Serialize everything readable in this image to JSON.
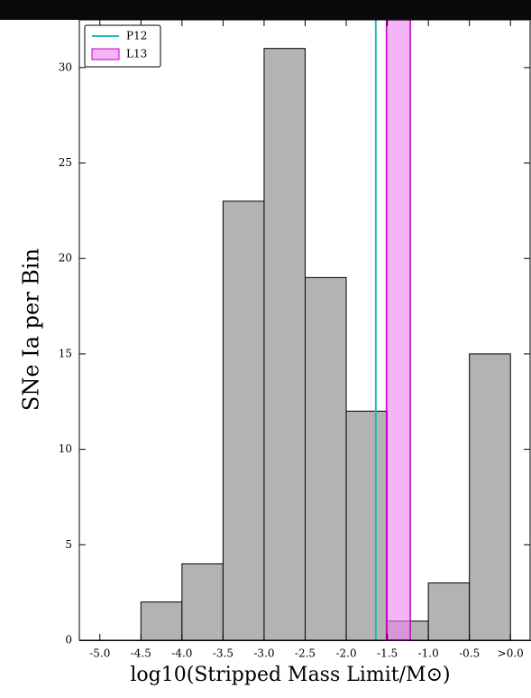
{
  "chart_data": {
    "type": "histogram",
    "xlabel": "log10(Stripped Mass Limit/M⊙)",
    "ylabel": "SNe Ia per Bin",
    "bins": [
      -4.5,
      -4.0,
      -3.5,
      -3.0,
      -2.5,
      -2.0,
      -1.5,
      -1.0,
      -0.5,
      0.0
    ],
    "counts": [
      2,
      4,
      23,
      31,
      19,
      12,
      1,
      3,
      15
    ],
    "color": "#b3b3b3",
    "xlim": [
      -5.25,
      0.25
    ],
    "xticks": [
      {
        "value": -5.0,
        "label": "-5.0"
      },
      {
        "value": -4.5,
        "label": "-4.5"
      },
      {
        "value": -4.0,
        "label": "-4.0"
      },
      {
        "value": -3.5,
        "label": "-3.5"
      },
      {
        "value": -3.0,
        "label": "-3.0"
      },
      {
        "value": -2.5,
        "label": "-2.5"
      },
      {
        "value": -2.0,
        "label": "-2.0"
      },
      {
        "value": -1.5,
        "label": "-1.5"
      },
      {
        "value": -1.0,
        "label": "-1.0"
      },
      {
        "value": -0.5,
        "label": "-0.5"
      },
      {
        "value": 0.0,
        "label": ">0.0"
      }
    ],
    "ylim": [
      0,
      32.5
    ],
    "yticks": [
      0,
      5,
      10,
      15,
      20,
      25,
      30
    ],
    "legend": "upper left",
    "lines": [
      {
        "name": "P12",
        "color": "#1fb8b8",
        "x": -1.64
      }
    ],
    "bands": [
      {
        "name": "L13",
        "color": "#ee82ee",
        "edge": "#c000c0",
        "x": [
          -1.51,
          -1.22
        ]
      }
    ]
  }
}
